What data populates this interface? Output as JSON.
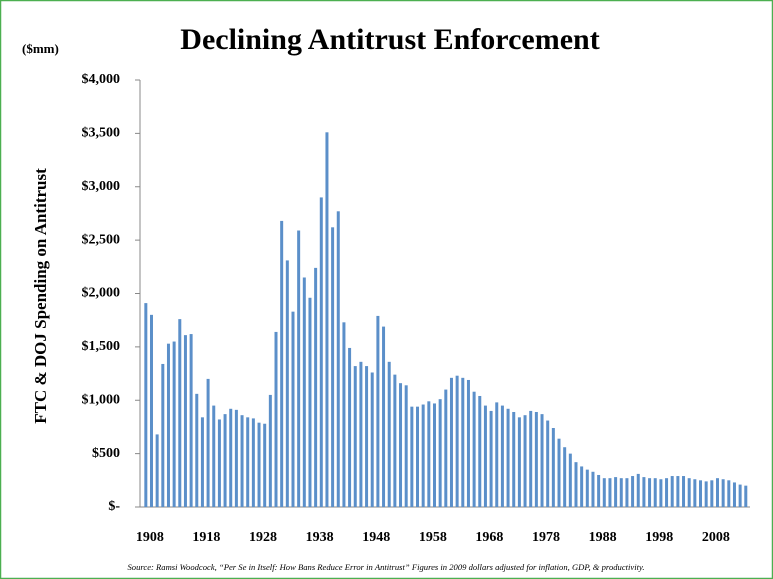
{
  "chart_data": {
    "type": "bar",
    "title": "Declining Antitrust Enforcement",
    "unit_label": "($mm)",
    "y_label": "FTC & DOJ Spending on Antitrust",
    "source": "Source: Ramsi Woodcock, “Per Se in Itself: How Bans Reduce Error in Antitrust” Figures in 2009 dollars adjusted for inflation, GDP, & productivity.",
    "color": "#5b8fc9",
    "categories": [
      "1908",
      null,
      null,
      null,
      null,
      null,
      null,
      null,
      null,
      null,
      "1918",
      null,
      null,
      null,
      null,
      null,
      null,
      null,
      null,
      null,
      "1928",
      null,
      null,
      null,
      null,
      null,
      null,
      null,
      null,
      null,
      "1938",
      null,
      null,
      null,
      null,
      null,
      null,
      null,
      null,
      null,
      "1948",
      null,
      null,
      null,
      null,
      null,
      null,
      null,
      null,
      null,
      "1958",
      null,
      null,
      null,
      null,
      null,
      null,
      null,
      null,
      null,
      "1968",
      null,
      null,
      null,
      null,
      null,
      null,
      null,
      null,
      null,
      "1978",
      null,
      null,
      null,
      null,
      null,
      null,
      null,
      null,
      null,
      "1988",
      null,
      null,
      null,
      null,
      null,
      null,
      null,
      null,
      null,
      "1998",
      null,
      null,
      null,
      null,
      null,
      null,
      null,
      null,
      null,
      "2008",
      null,
      null,
      null,
      null,
      null,
      null
    ],
    "values": [
      1910,
      1800,
      680,
      1340,
      1530,
      1550,
      1760,
      1610,
      1620,
      1060,
      840,
      1200,
      950,
      820,
      870,
      920,
      910,
      860,
      840,
      830,
      790,
      780,
      1050,
      1640,
      2680,
      2310,
      1830,
      2590,
      2150,
      1960,
      2240,
      2900,
      3510,
      2620,
      2770,
      1730,
      1490,
      1320,
      1360,
      1320,
      1260,
      1790,
      1690,
      1360,
      1240,
      1160,
      1140,
      940,
      940,
      960,
      990,
      970,
      1010,
      1100,
      1210,
      1230,
      1210,
      1190,
      1080,
      1040,
      950,
      900,
      980,
      950,
      920,
      890,
      840,
      860,
      900,
      890,
      870,
      810,
      740,
      640,
      560,
      500,
      420,
      380,
      350,
      330,
      300,
      270,
      270,
      280,
      270,
      270,
      290,
      310,
      280,
      270,
      270,
      260,
      270,
      290,
      290,
      290,
      270,
      260,
      250,
      240,
      250,
      270,
      260,
      250,
      230,
      210,
      200
    ],
    "ylim": [
      0,
      4000
    ],
    "yticks": [
      {
        "value": 0,
        "label": "$-"
      },
      {
        "value": 500,
        "label": "$500"
      },
      {
        "value": 1000,
        "label": "$1,000"
      },
      {
        "value": 1500,
        "label": "$1,500"
      },
      {
        "value": 2000,
        "label": "$2,000"
      },
      {
        "value": 2500,
        "label": "$2,500"
      },
      {
        "value": 3000,
        "label": "$3,000"
      },
      {
        "value": 3500,
        "label": "$3,500"
      },
      {
        "value": 4000,
        "label": "$4,000"
      }
    ],
    "grid": false
  }
}
